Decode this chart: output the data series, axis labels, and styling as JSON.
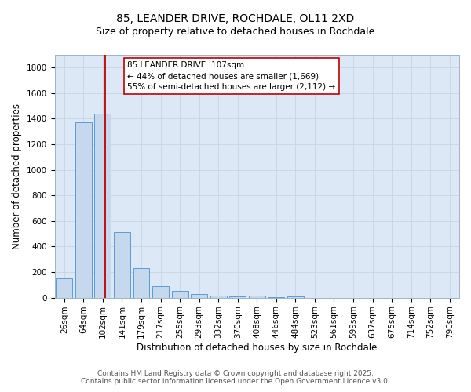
{
  "title1": "85, LEANDER DRIVE, ROCHDALE, OL11 2XD",
  "title2": "Size of property relative to detached houses in Rochdale",
  "xlabel": "Distribution of detached houses by size in Rochdale",
  "ylabel": "Number of detached properties",
  "bar_categories": [
    "26sqm",
    "64sqm",
    "102sqm",
    "141sqm",
    "179sqm",
    "217sqm",
    "255sqm",
    "293sqm",
    "332sqm",
    "370sqm",
    "408sqm",
    "446sqm",
    "484sqm",
    "523sqm",
    "561sqm",
    "599sqm",
    "637sqm",
    "675sqm",
    "714sqm",
    "752sqm",
    "790sqm"
  ],
  "bar_values": [
    148,
    1370,
    1440,
    510,
    228,
    90,
    55,
    28,
    18,
    8,
    13,
    5,
    8,
    0,
    0,
    0,
    0,
    0,
    0,
    0,
    0
  ],
  "bar_color": "#c5d8ee",
  "bar_edgecolor": "#5b9bd5",
  "vline_color": "#c00000",
  "vline_x_index": 2,
  "annotation_text": "85 LEANDER DRIVE: 107sqm\n← 44% of detached houses are smaller (1,669)\n55% of semi-detached houses are larger (2,112) →",
  "annotation_box_color": "white",
  "annotation_box_edgecolor": "#c00000",
  "ylim": [
    0,
    1900
  ],
  "yticks": [
    0,
    200,
    400,
    600,
    800,
    1000,
    1200,
    1400,
    1600,
    1800
  ],
  "grid_color": "#c8d4e0",
  "bg_color": "#dce8f5",
  "footer1": "Contains HM Land Registry data © Crown copyright and database right 2025.",
  "footer2": "Contains public sector information licensed under the Open Government Licence v3.0.",
  "title_fontsize": 10,
  "subtitle_fontsize": 9,
  "axis_label_fontsize": 8.5,
  "tick_fontsize": 7.5,
  "annotation_fontsize": 7.5,
  "footer_fontsize": 6.5
}
